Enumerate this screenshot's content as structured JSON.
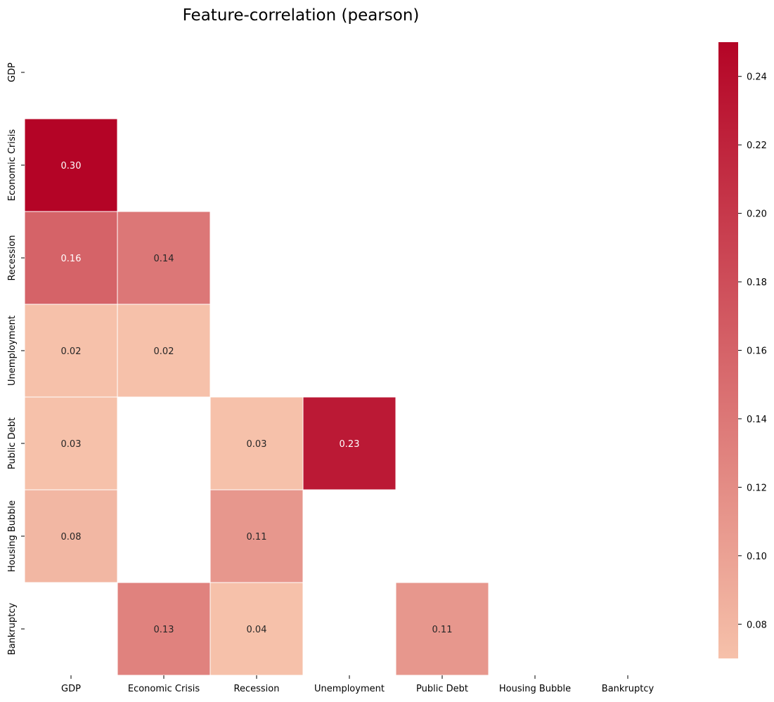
{
  "chart_data": {
    "type": "heatmap",
    "title": "Feature-correlation (pearson)",
    "method": "pearson",
    "row_labels": [
      "GDP",
      "Economic Crisis",
      "Recession",
      "Unemployment",
      "Public Debt",
      "Housing Bubble",
      "Bankruptcy"
    ],
    "col_labels": [
      "GDP",
      "Economic Crisis",
      "Recession",
      "Unemployment",
      "Public Debt",
      "Housing Bubble",
      "Bankruptcy"
    ],
    "values": [
      [
        null,
        null,
        null,
        null,
        null,
        null,
        null
      ],
      [
        0.3,
        null,
        null,
        null,
        null,
        null,
        null
      ],
      [
        0.16,
        0.14,
        null,
        null,
        null,
        null,
        null
      ],
      [
        0.02,
        0.02,
        null,
        null,
        null,
        null,
        null
      ],
      [
        0.03,
        null,
        0.03,
        0.23,
        null,
        null,
        null
      ],
      [
        0.08,
        null,
        0.11,
        null,
        null,
        null,
        null
      ],
      [
        null,
        0.13,
        0.04,
        null,
        0.11,
        null,
        null
      ]
    ],
    "annotation_format": "0.00",
    "colormap": "coolwarm",
    "color_range": [
      0.07,
      0.25
    ],
    "colorbar_ticks": [
      0.08,
      0.1,
      0.12,
      0.14,
      0.16,
      0.18,
      0.2,
      0.22,
      0.24
    ],
    "colorbar_position": "right",
    "grid": false
  },
  "colors": {
    "low": "#f6c1aa",
    "high": "#b40426",
    "cell_border": "#ffffff",
    "text_dark": "#262626",
    "text_light": "#ffffff"
  }
}
